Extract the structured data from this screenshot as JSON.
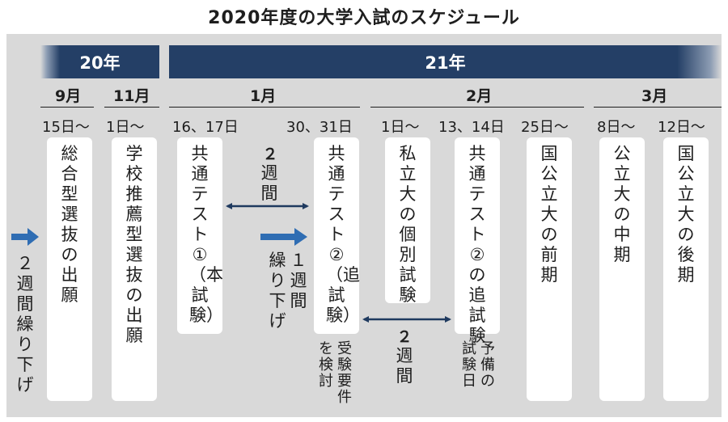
{
  "title": "2020年度の大学入試のスケジュール",
  "years": {
    "y20": "20年",
    "y21": "21年"
  },
  "months": {
    "sep": "9月",
    "nov": "11月",
    "jan": "1月",
    "feb": "2月",
    "mar": "3月"
  },
  "dates": {
    "d1": "15日～",
    "d2": "1日～",
    "d3": "16、17日",
    "d4": "30、31日",
    "d5": "1日～",
    "d6": "13、14日",
    "d7": "25日～",
    "d8": "8日～",
    "d9": "12日～"
  },
  "events": {
    "e1": "総合型選抜の出願",
    "e2": "学校推薦型選抜の出願",
    "e3": "共通テスト①（本試験）",
    "e4": "共通テスト②（追試験）",
    "e5": "私立大の個別試験",
    "e6": "共通テスト②の追試験",
    "e7": "国公立大の前期",
    "e8": "公立大の中期",
    "e9": "国公立大の後期"
  },
  "notes": {
    "left_delay": "２週間繰り下げ",
    "gap_top_num": "２",
    "gap_top_unit": "週間",
    "delay1_col1": "繰り下げ",
    "delay1_col2": "１週間",
    "gap_bottom_num": "２",
    "gap_bottom_unit": "週間",
    "consider_col1": "受験要件",
    "consider_col2": "を検討",
    "yobi_col1": "予備の",
    "yobi_col2": "試験日"
  },
  "colors": {
    "panel": "#d9d9d9",
    "bar": "#243f66",
    "arrow_blue": "#2f6db3",
    "dark_arrow": "#1f3a5f"
  }
}
